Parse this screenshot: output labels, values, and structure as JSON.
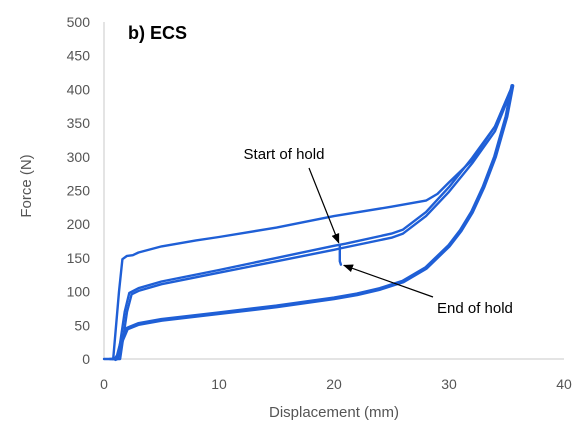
{
  "chart_data": {
    "type": "line",
    "panel_label": "b) ECS",
    "xlabel": "Displacement (mm)",
    "ylabel": "Force (N)",
    "xlim": [
      0,
      40
    ],
    "ylim": [
      0,
      500
    ],
    "x_ticks": [
      0,
      10,
      20,
      30,
      40
    ],
    "y_ticks": [
      0,
      50,
      100,
      150,
      200,
      250,
      300,
      350,
      400,
      450,
      500
    ],
    "grid": false,
    "line_color": "#1f5fd6",
    "axis_color": "#c8c8c8",
    "series": [
      {
        "role": "first-loading",
        "points": [
          [
            0,
            0
          ],
          [
            0.8,
            0
          ],
          [
            1.3,
            100
          ],
          [
            1.6,
            148
          ],
          [
            2.0,
            153
          ],
          [
            2.5,
            154
          ],
          [
            3,
            158
          ],
          [
            5,
            167
          ],
          [
            8,
            176
          ],
          [
            10,
            181
          ],
          [
            15,
            195
          ],
          [
            20,
            212
          ],
          [
            25,
            226
          ],
          [
            28,
            235
          ],
          [
            29,
            245
          ],
          [
            30,
            262
          ],
          [
            32,
            295
          ],
          [
            34,
            345
          ],
          [
            35.5,
            405
          ]
        ]
      },
      {
        "role": "reloading-1",
        "points": [
          [
            0.5,
            0
          ],
          [
            1.2,
            0
          ],
          [
            1.8,
            70
          ],
          [
            2.2,
            98
          ],
          [
            3,
            105
          ],
          [
            5,
            115
          ],
          [
            10,
            132
          ],
          [
            15,
            150
          ],
          [
            20,
            168
          ],
          [
            21,
            171
          ],
          [
            25,
            186
          ],
          [
            26,
            192
          ],
          [
            28,
            218
          ],
          [
            30,
            255
          ],
          [
            32,
            298
          ],
          [
            34,
            345
          ],
          [
            35.5,
            405
          ]
        ]
      },
      {
        "role": "reloading-2",
        "points": [
          [
            0.7,
            0
          ],
          [
            1.4,
            0
          ],
          [
            2.0,
            70
          ],
          [
            2.4,
            96
          ],
          [
            3,
            101
          ],
          [
            5,
            111
          ],
          [
            10,
            128
          ],
          [
            15,
            145
          ],
          [
            20,
            162
          ],
          [
            20.5,
            164
          ],
          [
            25,
            180
          ],
          [
            26,
            186
          ],
          [
            28,
            212
          ],
          [
            30,
            248
          ],
          [
            32,
            290
          ],
          [
            34,
            338
          ],
          [
            35.5,
            402
          ]
        ]
      },
      {
        "role": "unloading",
        "points": [
          [
            35.5,
            405
          ],
          [
            35,
            360
          ],
          [
            34,
            300
          ],
          [
            33,
            255
          ],
          [
            32,
            218
          ],
          [
            31,
            190
          ],
          [
            30,
            168
          ],
          [
            28,
            135
          ],
          [
            26,
            115
          ],
          [
            24,
            104
          ],
          [
            22,
            96
          ],
          [
            20,
            90
          ],
          [
            15,
            78
          ],
          [
            10,
            68
          ],
          [
            5,
            58
          ],
          [
            3,
            52
          ],
          [
            2,
            45
          ],
          [
            1.5,
            25
          ],
          [
            1.2,
            5
          ],
          [
            1.0,
            0
          ]
        ]
      },
      {
        "role": "hold-drop",
        "points": [
          [
            20.5,
            168
          ],
          [
            20.5,
            145
          ],
          [
            20.6,
            140
          ]
        ]
      }
    ],
    "annotations": [
      {
        "text": "Start of hold",
        "x": 20.5,
        "y": 168
      },
      {
        "text": "End of hold",
        "x": 20.6,
        "y": 142
      }
    ]
  }
}
